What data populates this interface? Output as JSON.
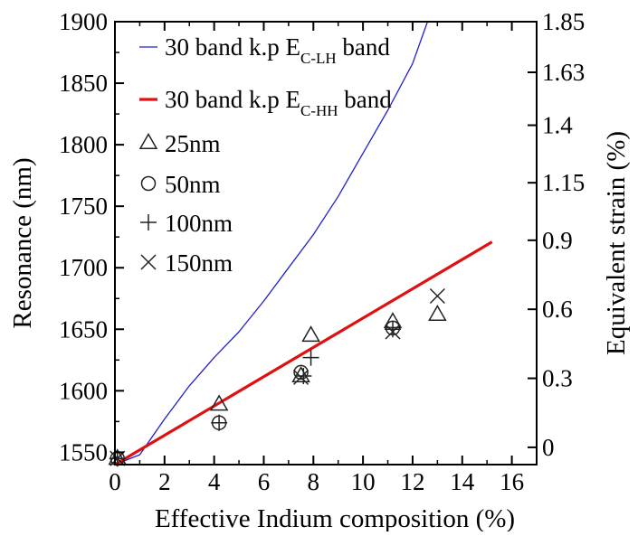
{
  "chart_data": {
    "type": "scatter",
    "xlabel": "Effective Indium composition (%)",
    "ylabel": "Resonance (nm)",
    "y2label": "Equivalent strain (%)",
    "xlim": [
      0,
      17
    ],
    "ylim": [
      1540,
      1900
    ],
    "y2lim": [
      -0.075,
      1.85
    ],
    "x_ticks": [
      "0",
      "2",
      "4",
      "6",
      "8",
      "10",
      "12",
      "14",
      "16"
    ],
    "y_ticks": [
      "1550",
      "1600",
      "1650",
      "1700",
      "1750",
      "1800",
      "1850",
      "1900"
    ],
    "y2_ticks": [
      "0",
      "0.3",
      "0.6",
      "0.9",
      "1.15",
      "1.4",
      "1.63",
      "1.85"
    ],
    "grid": false,
    "legend_position": "top-left",
    "colors": {
      "lh": "#1f1fd0",
      "hh": "#e01010",
      "markers": "#222222"
    },
    "lines": [
      {
        "name": "30 band k.p E",
        "subscript": "C-LH",
        "suffix": " band",
        "color": "#1f1fd0",
        "x": [
          0,
          1,
          2,
          3,
          4,
          5,
          6,
          7,
          8,
          9,
          10,
          11,
          12,
          12.6
        ],
        "y": [
          1540,
          1548,
          1577,
          1604,
          1627,
          1648,
          1673,
          1700,
          1727,
          1758,
          1793,
          1828,
          1866,
          1900
        ]
      },
      {
        "name": "30 band k.p E",
        "subscript": "C-HH",
        "suffix": " band",
        "color": "#e01010",
        "x": [
          0,
          15.2
        ],
        "y": [
          1540,
          1721
        ]
      }
    ],
    "series": [
      {
        "name": "25nm",
        "marker": "triangle",
        "x": [
          0.1,
          4.2,
          7.5,
          7.9,
          11.2,
          13.0
        ],
        "y": [
          1545,
          1589,
          1612,
          1645,
          1656,
          1662
        ]
      },
      {
        "name": "50nm",
        "marker": "circle",
        "x": [
          0.1,
          4.2,
          7.5,
          11.2
        ],
        "y": [
          1545,
          1574,
          1615,
          1651
        ]
      },
      {
        "name": "100nm",
        "marker": "plus",
        "x": [
          0.1,
          4.2,
          7.6,
          7.9,
          11.2
        ],
        "y": [
          1545,
          1574,
          1612,
          1627,
          1650
        ]
      },
      {
        "name": "150nm",
        "marker": "cross",
        "x": [
          0.1,
          7.5,
          11.2,
          13.0
        ],
        "y": [
          1545,
          1611,
          1648,
          1677
        ]
      }
    ]
  }
}
